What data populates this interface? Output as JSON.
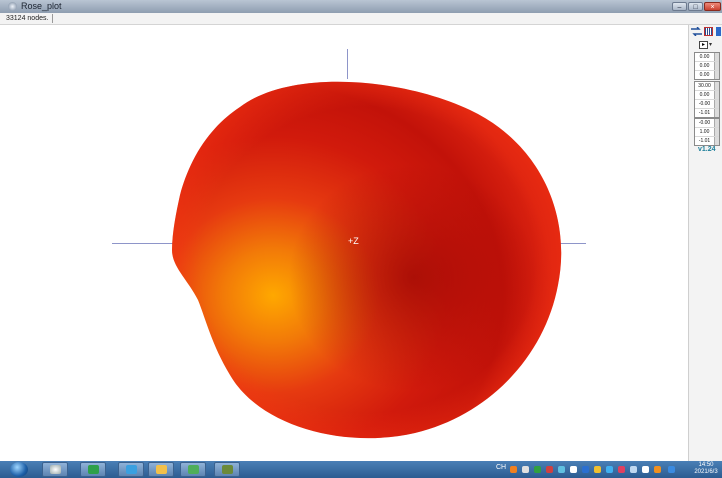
{
  "window": {
    "title": "Rose_plot"
  },
  "status": {
    "nodes": "33124 nodes."
  },
  "viewport": {
    "axis_label": "+Z"
  },
  "panel": {
    "groups": [
      [
        "0.00",
        "0.00",
        "0.00"
      ],
      [
        "30.00",
        "0.00",
        "-0.00",
        "-1.01"
      ],
      [
        "-0.00",
        "1.00",
        "-1.01"
      ]
    ],
    "version": "v1.24"
  },
  "taskbar": {
    "apps": [
      "explorer-icon",
      "settings-icon",
      "image-icon",
      "network-icon",
      "folder-icon",
      "chart-icon",
      "rose-icon"
    ],
    "tray_lang": "CH",
    "time": "14:50",
    "date": "2021/6/3"
  },
  "colors": {
    "blob_hot": "#ffa500",
    "blob_mid": "#e8260f",
    "blob_dark": "#a80a05"
  }
}
